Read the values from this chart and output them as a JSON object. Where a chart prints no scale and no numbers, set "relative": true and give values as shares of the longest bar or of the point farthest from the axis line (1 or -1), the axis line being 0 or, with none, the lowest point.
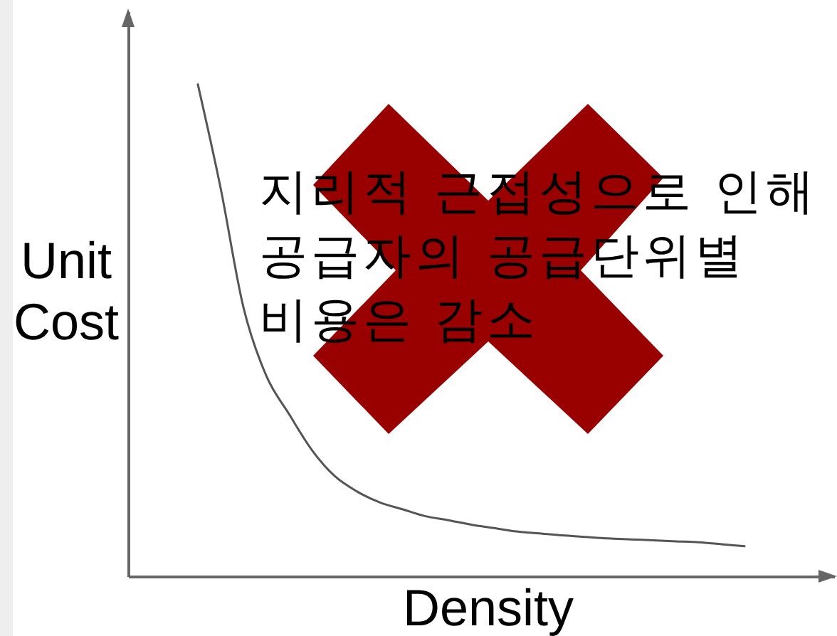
{
  "chart_data": {
    "type": "line",
    "xlabel": "Density",
    "ylabel": "Unit Cost",
    "annotations": [
      "지리적 근접성으로 인해 공급자의 공급단위별 비용은 감소"
    ],
    "categories": [
      null,
      null,
      null,
      null,
      null,
      null,
      null,
      null,
      null,
      null,
      null,
      null,
      null,
      null,
      null,
      null,
      null,
      null,
      null,
      null,
      null,
      null,
      null,
      null,
      null
    ],
    "relative": true,
    "series": [
      {
        "color": "#555555",
        "values": [
          1.0,
          0.789,
          0.547,
          0.408,
          0.33,
          0.257,
          0.204,
          0.172,
          0.15,
          0.136,
          0.122,
          0.114,
          0.105,
          0.098,
          0.091,
          0.087,
          0.083,
          0.08,
          0.077,
          0.075,
          0.073,
          0.071,
          0.069,
          0.065,
          0.061
        ]
      }
    ]
  }
}
